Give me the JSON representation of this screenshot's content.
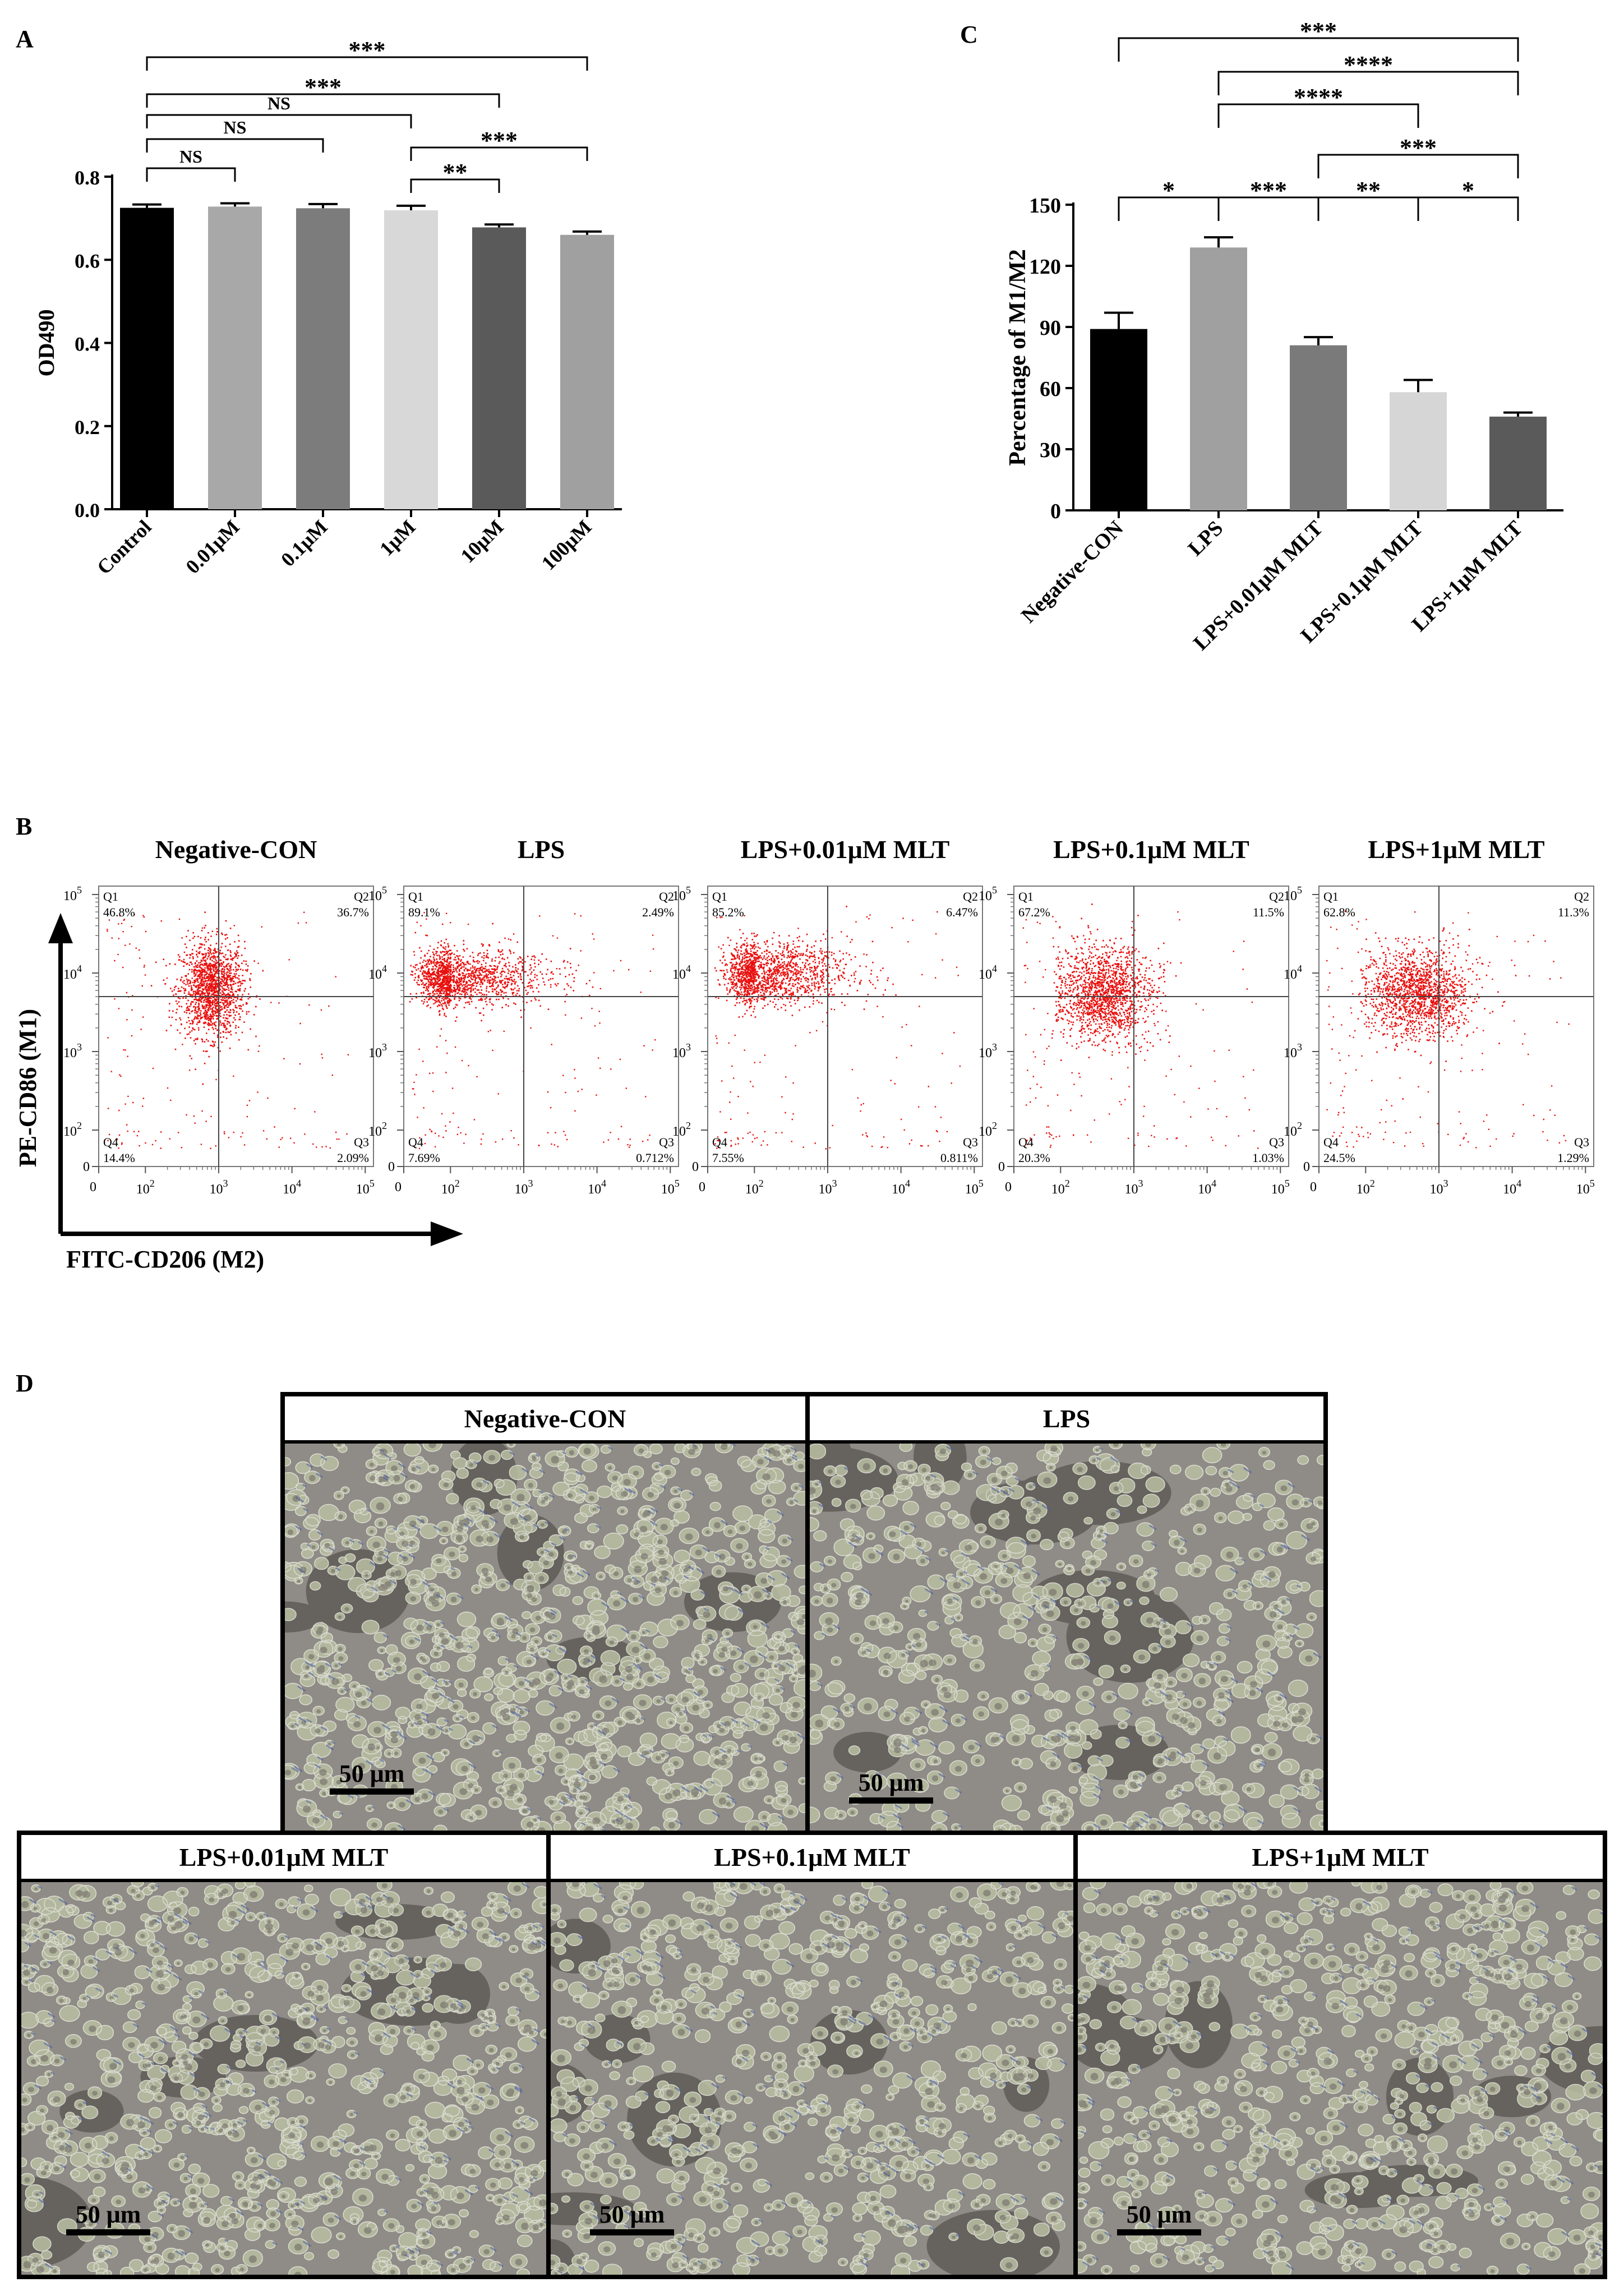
{
  "panels": {
    "a": {
      "letter": "A"
    },
    "b": {
      "letter": "B"
    },
    "c": {
      "letter": "C"
    },
    "d": {
      "letter": "D"
    }
  },
  "chart_data": [
    {
      "id": "A",
      "type": "bar",
      "categories": [
        "Control",
        "0.01μM",
        "0.1μM",
        "1μM",
        "10μM",
        "100μM"
      ],
      "values": [
        0.725,
        0.728,
        0.724,
        0.719,
        0.678,
        0.66
      ],
      "errors": [
        0.008,
        0.008,
        0.01,
        0.011,
        0.007,
        0.008
      ],
      "colors": [
        "#000000",
        "#a8a8a8",
        "#7c7c7c",
        "#d8d8d8",
        "#5a5a5a",
        "#a0a0a0"
      ],
      "ylabel": "OD490",
      "ylim": [
        0,
        0.8
      ],
      "yticks": [
        "0.0",
        "0.2",
        "0.4",
        "0.6",
        "0.8"
      ],
      "significance": [
        {
          "from": 0,
          "to": 5,
          "label": "***"
        },
        {
          "from": 0,
          "to": 4,
          "label": "***"
        },
        {
          "from": 0,
          "to": 3,
          "label": "NS"
        },
        {
          "from": 0,
          "to": 2,
          "label": "NS"
        },
        {
          "from": 0,
          "to": 1,
          "label": "NS"
        },
        {
          "from": 3,
          "to": 5,
          "label": "***"
        },
        {
          "from": 3,
          "to": 4,
          "label": "**"
        }
      ]
    },
    {
      "id": "C",
      "type": "bar",
      "categories": [
        "Negative-CON",
        "LPS",
        "LPS+0.01μM MLT",
        "LPS+0.1μM MLT",
        "LPS+1μM MLT"
      ],
      "values": [
        89,
        129,
        81,
        58,
        46
      ],
      "errors": [
        8,
        5,
        4,
        6,
        2
      ],
      "colors": [
        "#000000",
        "#a0a0a0",
        "#7a7a7a",
        "#d6d6d6",
        "#5a5a5a"
      ],
      "ylabel": "Percentage of M1/M2",
      "ylim": [
        0,
        150
      ],
      "yticks": [
        "0",
        "30",
        "60",
        "90",
        "120",
        "150"
      ],
      "significance": [
        {
          "from": 0,
          "to": 4,
          "label": "***"
        },
        {
          "from": 1,
          "to": 4,
          "label": "****"
        },
        {
          "from": 1,
          "to": 3,
          "label": "****"
        },
        {
          "from": 2,
          "to": 4,
          "label": "***"
        },
        {
          "from": 0,
          "to": 1,
          "label": "*"
        },
        {
          "from": 1,
          "to": 2,
          "label": "***"
        },
        {
          "from": 2,
          "to": 3,
          "label": "**"
        },
        {
          "from": 3,
          "to": 4,
          "label": "*"
        }
      ]
    },
    {
      "id": "B",
      "type": "scatter",
      "ylabel": "PE-CD86 (M1)",
      "xlabel": "FITC-CD206 (M2)",
      "tick_labels": {
        "zero": "0",
        "two": "2",
        "three": "3",
        "four": "4",
        "five": "5",
        "base": "10"
      },
      "quadrant_names": [
        "Q1",
        "Q2",
        "Q3",
        "Q4"
      ],
      "plots": [
        {
          "title": "Negative-CON",
          "q1": "46.8%",
          "q2": "36.7%",
          "q3": "2.09%",
          "q4": "14.4%",
          "cx": 2.9,
          "cy": 3.8,
          "sx": 0.22,
          "sy": 0.3
        },
        {
          "title": "LPS",
          "q1": "89.1%",
          "q2": "2.49%",
          "q3": "0.712%",
          "q4": "7.69%",
          "cx": 2.0,
          "cy": 3.95,
          "sx": 0.65,
          "sy": 0.18
        },
        {
          "title": "LPS+0.01μM MLT",
          "q1": "85.2%",
          "q2": "6.47%",
          "q3": "0.811%",
          "q4": "7.55%",
          "cx": 2.1,
          "cy": 4.0,
          "sx": 0.6,
          "sy": 0.2
        },
        {
          "title": "LPS+0.1μM MLT",
          "q1": "67.2%",
          "q2": "11.5%",
          "q3": "1.03%",
          "q4": "20.3%",
          "cx": 2.6,
          "cy": 3.75,
          "sx": 0.32,
          "sy": 0.3
        },
        {
          "title": "LPS+1μM MLT",
          "q1": "62.8%",
          "q2": "11.3%",
          "q3": "1.29%",
          "q4": "24.5%",
          "cx": 2.7,
          "cy": 3.75,
          "sx": 0.35,
          "sy": 0.28
        }
      ]
    }
  ],
  "micrographs": {
    "scale_bar": "50 μm",
    "titles": [
      "Negative-CON",
      "LPS",
      "LPS+0.01μM MLT",
      "LPS+0.1μM MLT",
      "LPS+1μM MLT"
    ]
  }
}
